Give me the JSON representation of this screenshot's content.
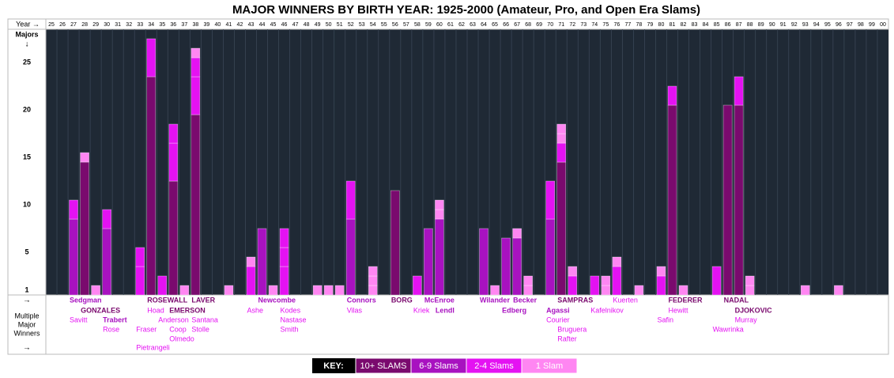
{
  "chart_data": {
    "type": "stacked-bar",
    "title": "MAJOR WINNERS BY BIRTH YEAR: 1925-2000 (Amateur, Pro, and Open Era Slams)",
    "x_label": "Year →",
    "y_label": "Majors",
    "y_arrow": "↓",
    "winners_arrow": "→",
    "winners_title": [
      "Multiple",
      "Major",
      "Winners"
    ],
    "winners_arrow_end": "→",
    "key_label": "KEY:",
    "tiers": [
      {
        "name": "10+ SLAMS",
        "color": "#7a0a6e"
      },
      {
        "name": "6-9 Slams",
        "color": "#a812c0"
      },
      {
        "name": "2-4 Slams",
        "color": "#e412f2"
      },
      {
        "name": "1 Slam",
        "color": "#ff86f2"
      }
    ],
    "categories": [
      "25",
      "26",
      "27",
      "28",
      "29",
      "30",
      "31",
      "32",
      "33",
      "34",
      "35",
      "36",
      "37",
      "38",
      "39",
      "40",
      "41",
      "42",
      "43",
      "44",
      "45",
      "46",
      "47",
      "48",
      "49",
      "50",
      "51",
      "52",
      "53",
      "54",
      "55",
      "56",
      "57",
      "58",
      "59",
      "60",
      "61",
      "62",
      "63",
      "64",
      "65",
      "66",
      "67",
      "68",
      "69",
      "70",
      "71",
      "72",
      "73",
      "74",
      "75",
      "76",
      "77",
      "78",
      "79",
      "80",
      "81",
      "82",
      "83",
      "84",
      "85",
      "86",
      "87",
      "88",
      "89",
      "90",
      "91",
      "92",
      "93",
      "94",
      "95",
      "96",
      "97",
      "98",
      "99",
      "00"
    ],
    "ylim": [
      0,
      28
    ],
    "yticks": [
      1,
      5,
      10,
      15,
      20,
      25
    ],
    "grid": true,
    "stacks": [
      [],
      [],
      [
        {
          "tier": 1,
          "value": 8
        },
        {
          "tier": 2,
          "value": 2
        }
      ],
      [
        {
          "tier": 0,
          "value": 14
        },
        {
          "tier": 3,
          "value": 1
        }
      ],
      [
        {
          "tier": 3,
          "value": 1
        }
      ],
      [
        {
          "tier": 1,
          "value": 7
        },
        {
          "tier": 2,
          "value": 2
        }
      ],
      [],
      [],
      [
        {
          "tier": 2,
          "value": 3
        },
        {
          "tier": 2,
          "value": 2
        }
      ],
      [
        {
          "tier": 0,
          "value": 23
        },
        {
          "tier": 2,
          "value": 4
        }
      ],
      [
        {
          "tier": 2,
          "value": 2
        }
      ],
      [
        {
          "tier": 0,
          "value": 12
        },
        {
          "tier": 2,
          "value": 4
        },
        {
          "tier": 2,
          "value": 2
        }
      ],
      [
        {
          "tier": 3,
          "value": 1
        }
      ],
      [
        {
          "tier": 0,
          "value": 19
        },
        {
          "tier": 2,
          "value": 4
        },
        {
          "tier": 2,
          "value": 2
        },
        {
          "tier": 3,
          "value": 1
        }
      ],
      [],
      [],
      [
        {
          "tier": 3,
          "value": 1
        }
      ],
      [],
      [
        {
          "tier": 2,
          "value": 3
        },
        {
          "tier": 3,
          "value": 1
        }
      ],
      [
        {
          "tier": 1,
          "value": 7
        }
      ],
      [
        {
          "tier": 3,
          "value": 1
        }
      ],
      [
        {
          "tier": 2,
          "value": 3
        },
        {
          "tier": 2,
          "value": 2
        },
        {
          "tier": 2,
          "value": 2
        }
      ],
      [],
      [],
      [
        {
          "tier": 3,
          "value": 1
        }
      ],
      [
        {
          "tier": 3,
          "value": 1
        }
      ],
      [
        {
          "tier": 3,
          "value": 1
        }
      ],
      [
        {
          "tier": 1,
          "value": 8
        },
        {
          "tier": 2,
          "value": 4
        }
      ],
      [],
      [
        {
          "tier": 3,
          "value": 1
        },
        {
          "tier": 3,
          "value": 1
        },
        {
          "tier": 3,
          "value": 1
        }
      ],
      [],
      [
        {
          "tier": 0,
          "value": 11
        }
      ],
      [],
      [
        {
          "tier": 2,
          "value": 2
        }
      ],
      [
        {
          "tier": 1,
          "value": 7
        }
      ],
      [
        {
          "tier": 1,
          "value": 8
        },
        {
          "tier": 3,
          "value": 1
        },
        {
          "tier": 3,
          "value": 1
        }
      ],
      [],
      [],
      [],
      [
        {
          "tier": 1,
          "value": 7
        }
      ],
      [
        {
          "tier": 3,
          "value": 1
        }
      ],
      [
        {
          "tier": 1,
          "value": 6
        }
      ],
      [
        {
          "tier": 1,
          "value": 6
        },
        {
          "tier": 3,
          "value": 1
        }
      ],
      [
        {
          "tier": 3,
          "value": 1
        },
        {
          "tier": 3,
          "value": 1
        }
      ],
      [],
      [
        {
          "tier": 1,
          "value": 8
        },
        {
          "tier": 2,
          "value": 4
        }
      ],
      [
        {
          "tier": 0,
          "value": 14
        },
        {
          "tier": 2,
          "value": 2
        },
        {
          "tier": 3,
          "value": 1
        },
        {
          "tier": 3,
          "value": 1
        }
      ],
      [
        {
          "tier": 2,
          "value": 2
        },
        {
          "tier": 3,
          "value": 1
        }
      ],
      [],
      [
        {
          "tier": 2,
          "value": 2
        }
      ],
      [
        {
          "tier": 3,
          "value": 1
        },
        {
          "tier": 3,
          "value": 1
        }
      ],
      [
        {
          "tier": 2,
          "value": 3
        },
        {
          "tier": 3,
          "value": 1
        }
      ],
      [],
      [
        {
          "tier": 3,
          "value": 1
        }
      ],
      [],
      [
        {
          "tier": 2,
          "value": 2
        },
        {
          "tier": 3,
          "value": 1
        }
      ],
      [
        {
          "tier": 0,
          "value": 20
        },
        {
          "tier": 2,
          "value": 2
        }
      ],
      [
        {
          "tier": 3,
          "value": 1
        }
      ],
      [],
      [],
      [
        {
          "tier": 2,
          "value": 3
        }
      ],
      [
        {
          "tier": 0,
          "value": 20
        }
      ],
      [
        {
          "tier": 0,
          "value": 20
        },
        {
          "tier": 2,
          "value": 3
        }
      ],
      [
        {
          "tier": 3,
          "value": 1
        },
        {
          "tier": 3,
          "value": 1
        }
      ],
      [],
      [],
      [],
      [],
      [
        {
          "tier": 3,
          "value": 1
        }
      ],
      [],
      [],
      [
        {
          "tier": 3,
          "value": 1
        }
      ],
      [],
      [],
      [],
      []
    ],
    "winner_rows": [
      [
        {
          "year": "27",
          "name": "Sedgman",
          "tier": 1
        },
        {
          "year": "34",
          "name": "ROSEWALL",
          "tier": 0
        },
        {
          "year": "38",
          "name": "LAVER",
          "tier": 0
        },
        {
          "year": "44",
          "name": "Newcombe",
          "tier": 1
        },
        {
          "year": "52",
          "name": "Connors",
          "tier": 1
        },
        {
          "year": "56",
          "name": "BORG",
          "tier": 0
        },
        {
          "year": "59",
          "name": "McEnroe",
          "tier": 1
        },
        {
          "year": "64",
          "name": "Wilander",
          "tier": 1
        },
        {
          "year": "67",
          "name": "Becker",
          "tier": 1
        },
        {
          "year": "71",
          "name": "SAMPRAS",
          "tier": 0
        },
        {
          "year": "76",
          "name": "Kuerten",
          "tier": 2
        },
        {
          "year": "81",
          "name": "FEDERER",
          "tier": 0
        },
        {
          "year": "86",
          "name": "NADAL",
          "tier": 0
        }
      ],
      [
        {
          "year": "28",
          "name": "GONZALES",
          "tier": 0
        },
        {
          "year": "34",
          "name": "Hoad",
          "tier": 2
        },
        {
          "year": "36",
          "name": "EMERSON",
          "tier": 0
        },
        {
          "year": "43",
          "name": "Ashe",
          "tier": 2
        },
        {
          "year": "46",
          "name": "Kodes",
          "tier": 2
        },
        {
          "year": "52",
          "name": "Vilas",
          "tier": 2
        },
        {
          "year": "58",
          "name": "Kriek",
          "tier": 2
        },
        {
          "year": "60",
          "name": "Lendl",
          "tier": 1
        },
        {
          "year": "66",
          "name": "Edberg",
          "tier": 1
        },
        {
          "year": "70",
          "name": "Agassi",
          "tier": 1
        },
        {
          "year": "74",
          "name": "Kafelnikov",
          "tier": 2
        },
        {
          "year": "81",
          "name": "Hewitt",
          "tier": 2
        },
        {
          "year": "87",
          "name": "DJOKOVIC",
          "tier": 0
        }
      ],
      [
        {
          "year": "27",
          "name": "Savitt",
          "tier": 2
        },
        {
          "year": "30",
          "name": "Trabert",
          "tier": 1
        },
        {
          "year": "35",
          "name": "Anderson",
          "tier": 2
        },
        {
          "year": "38",
          "name": "Santana",
          "tier": 2
        },
        {
          "year": "46",
          "name": "Nastase",
          "tier": 2
        },
        {
          "year": "70",
          "name": "Courier",
          "tier": 2
        },
        {
          "year": "80",
          "name": "Safin",
          "tier": 2
        },
        {
          "year": "87",
          "name": "Murray",
          "tier": 2
        }
      ],
      [
        {
          "year": "30",
          "name": "Rose",
          "tier": 2
        },
        {
          "year": "33",
          "name": "Fraser",
          "tier": 2
        },
        {
          "year": "36",
          "name": "Coop",
          "tier": 2
        },
        {
          "year": "38",
          "name": "Stolle",
          "tier": 2
        },
        {
          "year": "46",
          "name": "Smith",
          "tier": 2
        },
        {
          "year": "71",
          "name": "Bruguera",
          "tier": 2
        },
        {
          "year": "85",
          "name": "Wawrinka",
          "tier": 2
        }
      ],
      [
        {
          "year": "36",
          "name": "Olmedo",
          "tier": 2
        },
        {
          "year": "71",
          "name": "Rafter",
          "tier": 2
        }
      ],
      [
        {
          "year": "33",
          "name": "Pietrangeli",
          "tier": 2
        }
      ]
    ]
  }
}
